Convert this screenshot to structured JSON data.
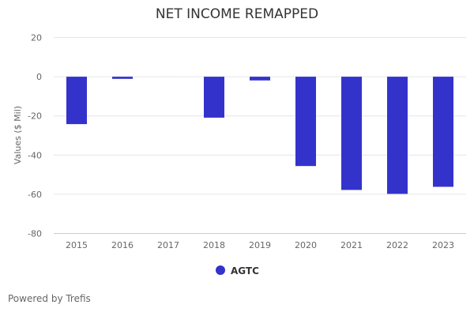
{
  "chart_data": {
    "type": "bar",
    "title": "NET INCOME REMAPPED",
    "xlabel": "",
    "ylabel": "Values ($ Mil)",
    "categories": [
      "2015",
      "2016",
      "2017",
      "2018",
      "2019",
      "2020",
      "2021",
      "2022",
      "2023"
    ],
    "series": [
      {
        "name": "AGTC",
        "color": "#3333cc",
        "values": [
          -24.2,
          -1.1,
          0,
          -20.9,
          -1.9,
          -45.6,
          -57.8,
          -59.8,
          -56.2
        ]
      }
    ],
    "ylim": [
      -80,
      20
    ],
    "yticks": [
      20,
      0,
      -20,
      -40,
      -60,
      -80
    ],
    "grid": true,
    "legend": "bottom-center"
  },
  "footer": "Powered by Trefis"
}
